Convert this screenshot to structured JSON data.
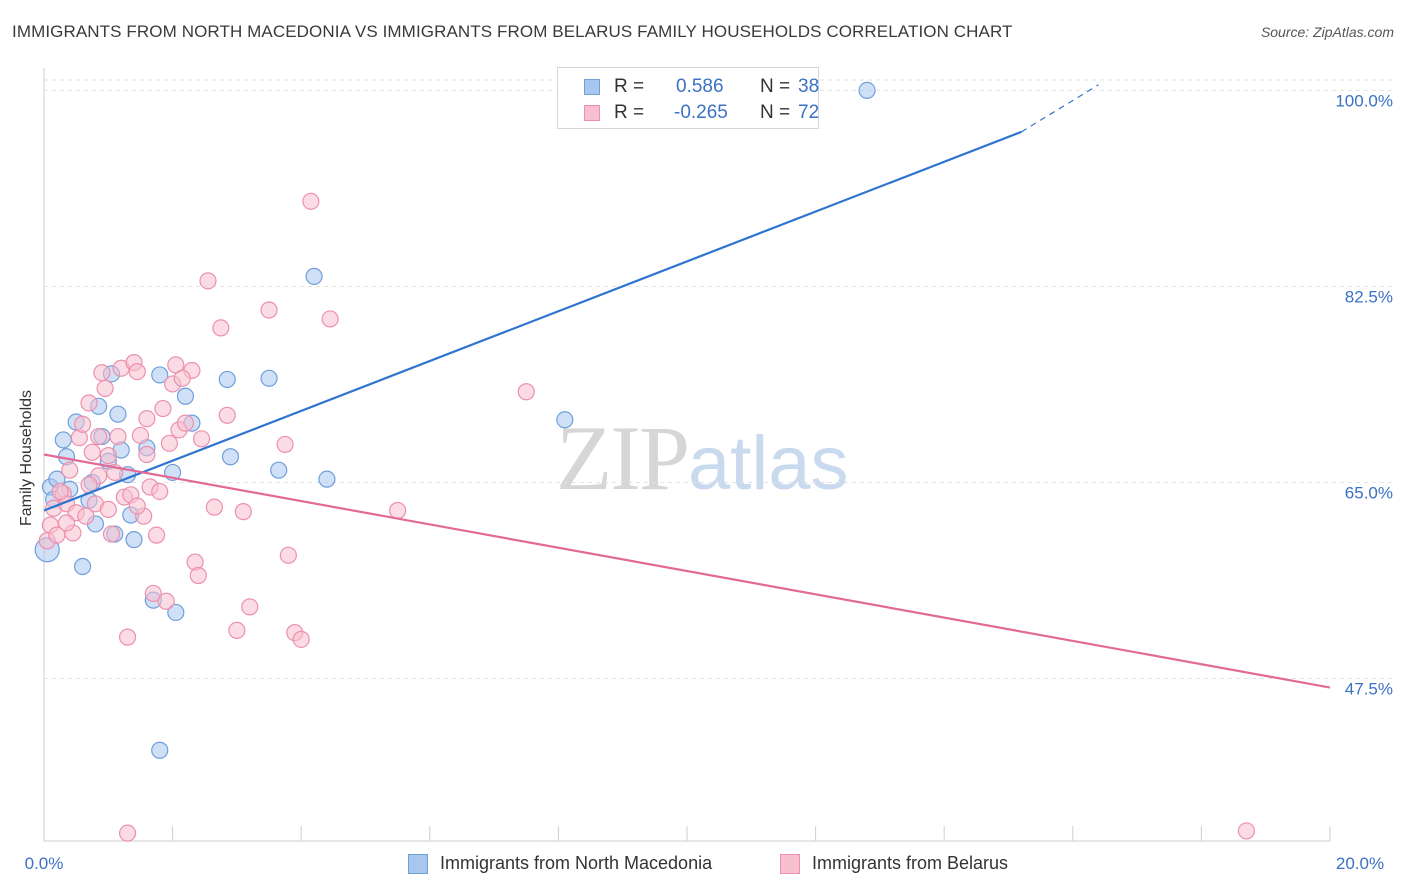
{
  "header": {
    "title": "IMMIGRANTS FROM NORTH MACEDONIA VS IMMIGRANTS FROM BELARUS FAMILY HOUSEHOLDS CORRELATION CHART",
    "source": "Source: ZipAtlas.com"
  },
  "watermark": {
    "part1": "ZIP",
    "part2": "atlas"
  },
  "stats": {
    "rows": [
      {
        "r_label": "R =",
        "r_value": "0.586",
        "n_label": "N =",
        "n_value": "38"
      },
      {
        "r_label": "R =",
        "r_value": "-0.265",
        "n_label": "N =",
        "n_value": "72"
      }
    ]
  },
  "legend": {
    "items": [
      {
        "label": "Immigrants from North Macedonia"
      },
      {
        "label": "Immigrants from Belarus"
      }
    ]
  },
  "chart_data": {
    "type": "scatter",
    "title": "IMMIGRANTS FROM NORTH MACEDONIA VS IMMIGRANTS FROM BELARUS FAMILY HOUSEHOLDS CORRELATION CHART",
    "xlabel": "",
    "ylabel": "Family Households",
    "xlim": [
      0,
      20
    ],
    "ylim": [
      33,
      102
    ],
    "x_tick_labels": [
      "0.0%",
      "20.0%"
    ],
    "y_ticks": [
      47.5,
      65.0,
      82.5,
      100.0
    ],
    "y_tick_labels": [
      "47.5%",
      "65.0%",
      "82.5%",
      "100.0%"
    ],
    "grid": true,
    "legend_position": "bottom",
    "colors": {
      "blue_fill": "#a9c6ef",
      "blue_stroke": "#6f9fdc",
      "blue_line": "#2f74d0",
      "pink_fill": "#f7bfd0",
      "pink_stroke": "#ec90ae",
      "pink_line": "#e26a95"
    },
    "series": [
      {
        "name": "Immigrants from North Macedonia",
        "color": "#a9c6ef",
        "trend": {
          "x": [
            0,
            15.2
          ],
          "y": [
            62.5,
            96.3
          ],
          "dashed_to": [
            16.4,
            100.5
          ]
        },
        "points": [
          [
            0.05,
            59.0
          ],
          [
            0.1,
            64.6
          ],
          [
            0.2,
            65.3
          ],
          [
            0.3,
            68.8
          ],
          [
            0.35,
            67.3
          ],
          [
            0.4,
            64.4
          ],
          [
            0.5,
            70.4
          ],
          [
            0.6,
            57.5
          ],
          [
            0.7,
            63.4
          ],
          [
            0.75,
            65.0
          ],
          [
            0.8,
            61.3
          ],
          [
            0.85,
            71.8
          ],
          [
            0.9,
            69.1
          ],
          [
            1.0,
            66.9
          ],
          [
            1.05,
            74.7
          ],
          [
            1.1,
            60.4
          ],
          [
            1.15,
            71.1
          ],
          [
            1.2,
            67.9
          ],
          [
            1.3,
            65.7
          ],
          [
            1.35,
            62.1
          ],
          [
            1.4,
            59.9
          ],
          [
            1.7,
            54.5
          ],
          [
            1.8,
            74.6
          ],
          [
            2.0,
            65.9
          ],
          [
            2.05,
            53.4
          ],
          [
            2.2,
            72.7
          ],
          [
            2.9,
            67.3
          ],
          [
            2.85,
            74.2
          ],
          [
            3.5,
            74.3
          ],
          [
            3.65,
            66.1
          ],
          [
            4.2,
            83.4
          ],
          [
            4.4,
            65.3
          ],
          [
            8.1,
            70.6
          ],
          [
            12.8,
            100.0
          ],
          [
            1.8,
            41.1
          ],
          [
            0.15,
            63.5
          ],
          [
            1.6,
            68.1
          ],
          [
            2.3,
            70.3
          ]
        ]
      },
      {
        "name": "Immigrants from Belarus",
        "color": "#f7bfd0",
        "trend": {
          "x": [
            0,
            20
          ],
          "y": [
            67.5,
            46.7
          ]
        },
        "points": [
          [
            0.05,
            59.8
          ],
          [
            0.1,
            61.2
          ],
          [
            0.15,
            62.7
          ],
          [
            0.2,
            60.3
          ],
          [
            0.3,
            64.0
          ],
          [
            0.35,
            63.1
          ],
          [
            0.45,
            60.5
          ],
          [
            0.5,
            62.3
          ],
          [
            0.55,
            69.0
          ],
          [
            0.6,
            70.2
          ],
          [
            0.65,
            62.0
          ],
          [
            0.7,
            72.1
          ],
          [
            0.75,
            67.7
          ],
          [
            0.8,
            63.1
          ],
          [
            0.85,
            69.1
          ],
          [
            0.9,
            74.8
          ],
          [
            0.95,
            73.4
          ],
          [
            1.0,
            67.4
          ],
          [
            1.05,
            60.4
          ],
          [
            1.1,
            65.9
          ],
          [
            1.15,
            69.1
          ],
          [
            1.2,
            75.2
          ],
          [
            1.25,
            63.7
          ],
          [
            1.3,
            51.2
          ],
          [
            1.35,
            63.9
          ],
          [
            1.4,
            75.7
          ],
          [
            1.45,
            74.9
          ],
          [
            1.5,
            69.2
          ],
          [
            1.55,
            62.0
          ],
          [
            1.6,
            67.5
          ],
          [
            1.65,
            64.6
          ],
          [
            1.7,
            55.1
          ],
          [
            1.75,
            60.3
          ],
          [
            1.8,
            64.2
          ],
          [
            1.85,
            71.6
          ],
          [
            1.9,
            54.4
          ],
          [
            2.0,
            73.8
          ],
          [
            2.05,
            75.5
          ],
          [
            2.1,
            69.7
          ],
          [
            2.2,
            70.3
          ],
          [
            2.3,
            75.0
          ],
          [
            2.35,
            57.9
          ],
          [
            2.4,
            56.7
          ],
          [
            2.45,
            68.9
          ],
          [
            2.55,
            83.0
          ],
          [
            2.65,
            62.8
          ],
          [
            2.75,
            78.8
          ],
          [
            2.85,
            71.0
          ],
          [
            3.0,
            51.8
          ],
          [
            3.1,
            62.4
          ],
          [
            3.2,
            53.9
          ],
          [
            3.5,
            80.4
          ],
          [
            3.75,
            68.4
          ],
          [
            3.8,
            58.5
          ],
          [
            3.9,
            51.6
          ],
          [
            4.0,
            51.0
          ],
          [
            4.15,
            90.1
          ],
          [
            4.45,
            79.6
          ],
          [
            5.5,
            62.5
          ],
          [
            7.5,
            73.1
          ],
          [
            1.3,
            33.7
          ],
          [
            18.7,
            33.9
          ],
          [
            0.25,
            64.2
          ],
          [
            0.4,
            66.1
          ],
          [
            1.0,
            62.6
          ],
          [
            1.6,
            70.7
          ],
          [
            2.15,
            74.3
          ],
          [
            0.85,
            65.6
          ],
          [
            1.45,
            62.9
          ],
          [
            1.95,
            68.5
          ],
          [
            0.35,
            61.4
          ],
          [
            0.7,
            64.8
          ]
        ]
      }
    ]
  }
}
